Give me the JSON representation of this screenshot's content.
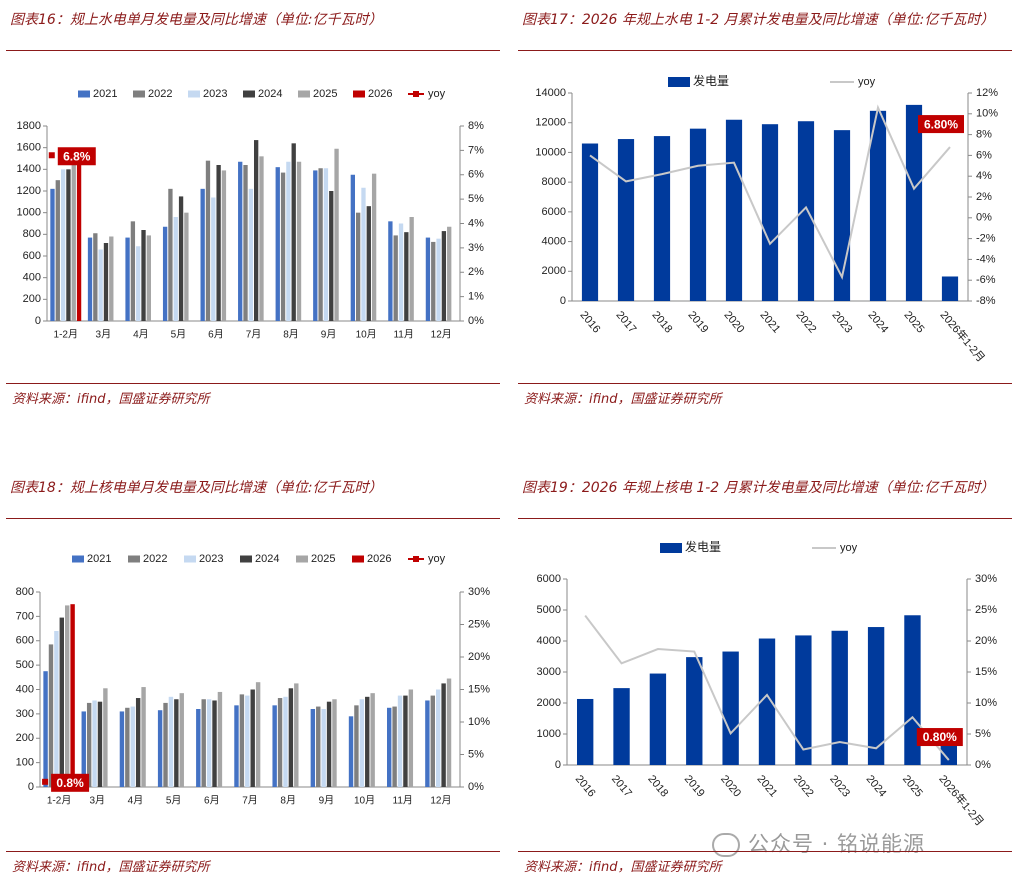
{
  "chart_data": [
    {
      "type": "bar",
      "title": "图表16：规上水电单月发电量及同比增速（单位:亿千瓦时）",
      "source": "资料来源：ifind，国盛证券研究所",
      "categories": [
        "1-2月",
        "3月",
        "4月",
        "5月",
        "6月",
        "7月",
        "8月",
        "9月",
        "10月",
        "11月",
        "12月"
      ],
      "series": [
        {
          "name": "2021",
          "color": "#4472c4",
          "values": [
            1220,
            770,
            770,
            870,
            1220,
            1470,
            1420,
            1390,
            1350,
            920,
            770
          ]
        },
        {
          "name": "2022",
          "color": "#7f7f7f",
          "values": [
            1300,
            810,
            920,
            1220,
            1480,
            1440,
            1370,
            1410,
            1000,
            790,
            730
          ]
        },
        {
          "name": "2023",
          "color": "#c5d9f1",
          "values": [
            1400,
            660,
            690,
            960,
            1140,
            1220,
            1470,
            1410,
            1230,
            900,
            760
          ]
        },
        {
          "name": "2024",
          "color": "#404040",
          "values": [
            1400,
            720,
            840,
            1150,
            1440,
            1670,
            1640,
            1200,
            1060,
            820,
            830
          ]
        },
        {
          "name": "2025",
          "color": "#a6a6a6",
          "values": [
            1460,
            780,
            790,
            1000,
            1390,
            1520,
            1470,
            1590,
            1360,
            960,
            870
          ]
        },
        {
          "name": "2026",
          "color": "#c00000",
          "values": [
            1560,
            null,
            null,
            null,
            null,
            null,
            null,
            null,
            null,
            null,
            null
          ]
        },
        {
          "name": "yoy",
          "color": "#c00000",
          "type": "line",
          "axis": "y2",
          "marker": "square",
          "values": [
            6.8,
            null,
            null,
            null,
            null,
            null,
            null,
            null,
            null,
            null,
            null
          ],
          "value_labels": [
            "6.8%",
            null,
            null,
            null,
            null,
            null,
            null,
            null,
            null,
            null,
            null
          ]
        }
      ],
      "ylim": [
        0,
        1800
      ],
      "yticks": [
        0,
        200,
        400,
        600,
        800,
        1000,
        1200,
        1400,
        1600,
        1800
      ],
      "y2lim": [
        0,
        8
      ],
      "y2ticks": [
        {
          "value": 0,
          "label": "0%"
        },
        {
          "value": 1,
          "label": "1%"
        },
        {
          "value": 2,
          "label": "2%"
        },
        {
          "value": 3,
          "label": "3%"
        },
        {
          "value": 4,
          "label": "4%"
        },
        {
          "value": 5,
          "label": "5%"
        },
        {
          "value": 6,
          "label": "6%"
        },
        {
          "value": 7,
          "label": "7%"
        },
        {
          "value": 8,
          "label": "8%"
        }
      ],
      "legend": "top",
      "grid": false
    },
    {
      "type": "bar",
      "title": "图表17：2026 年规上水电 1-2 月累计发电量及同比增速（单位:亿千瓦时）",
      "source": "资料来源：ifind，国盛证券研究所",
      "categories": [
        "2016",
        "2017",
        "2018",
        "2019",
        "2020",
        "2021",
        "2022",
        "2023",
        "2024",
        "2025",
        "2026年1-2月"
      ],
      "series": [
        {
          "name": "发电量",
          "color": "#003a9c",
          "values": [
            10600,
            10900,
            11100,
            11600,
            12200,
            11900,
            12100,
            11500,
            12800,
            13200,
            1650
          ]
        },
        {
          "name": "yoy",
          "color": "#c8c8c8",
          "type": "line",
          "axis": "y2",
          "values": [
            6.0,
            3.5,
            4.2,
            5.0,
            5.3,
            -2.5,
            1.0,
            -5.7,
            10.6,
            2.8,
            6.8
          ],
          "value_labels": [
            null,
            null,
            null,
            null,
            null,
            null,
            null,
            null,
            null,
            null,
            "6.80%"
          ]
        }
      ],
      "ylim": [
        0,
        14000
      ],
      "yticks": [
        0,
        2000,
        4000,
        6000,
        8000,
        10000,
        12000,
        14000
      ],
      "y2lim": [
        -8,
        12
      ],
      "y2ticks": [
        {
          "value": -8,
          "label": "-8%"
        },
        {
          "value": -6,
          "label": "-6%"
        },
        {
          "value": -4,
          "label": "-4%"
        },
        {
          "value": -2,
          "label": "-2%"
        },
        {
          "value": 0,
          "label": "0%"
        },
        {
          "value": 2,
          "label": "2%"
        },
        {
          "value": 4,
          "label": "4%"
        },
        {
          "value": 6,
          "label": "6%"
        },
        {
          "value": 8,
          "label": "8%"
        },
        {
          "value": 10,
          "label": "10%"
        },
        {
          "value": 12,
          "label": "12%"
        }
      ],
      "legend": "top",
      "grid": false
    },
    {
      "type": "bar",
      "title": "图表18：规上核电单月发电量及同比增速（单位:亿千瓦时）",
      "source": "资料来源：ifind，国盛证券研究所",
      "categories": [
        "1-2月",
        "3月",
        "4月",
        "5月",
        "6月",
        "7月",
        "8月",
        "9月",
        "10月",
        "11月",
        "12月"
      ],
      "series": [
        {
          "name": "2021",
          "color": "#4472c4",
          "values": [
            475,
            310,
            310,
            315,
            320,
            335,
            335,
            320,
            290,
            325,
            355
          ]
        },
        {
          "name": "2022",
          "color": "#7f7f7f",
          "values": [
            585,
            345,
            325,
            345,
            360,
            380,
            365,
            330,
            335,
            330,
            375
          ]
        },
        {
          "name": "2023",
          "color": "#c5d9f1",
          "values": [
            640,
            355,
            330,
            370,
            360,
            375,
            370,
            320,
            360,
            375,
            400
          ]
        },
        {
          "name": "2024",
          "color": "#404040",
          "values": [
            695,
            350,
            365,
            360,
            355,
            400,
            405,
            350,
            370,
            375,
            425
          ]
        },
        {
          "name": "2025",
          "color": "#a6a6a6",
          "values": [
            745,
            405,
            410,
            385,
            390,
            430,
            425,
            360,
            385,
            400,
            445
          ]
        },
        {
          "name": "2026",
          "color": "#c00000",
          "values": [
            750,
            null,
            null,
            null,
            null,
            null,
            null,
            null,
            null,
            null,
            null
          ]
        },
        {
          "name": "yoy",
          "color": "#c00000",
          "type": "line",
          "axis": "y2",
          "marker": "square",
          "values": [
            0.8,
            null,
            null,
            null,
            null,
            null,
            null,
            null,
            null,
            null,
            null
          ],
          "value_labels": [
            "0.8%",
            null,
            null,
            null,
            null,
            null,
            null,
            null,
            null,
            null,
            null
          ]
        }
      ],
      "ylim": [
        0,
        800
      ],
      "yticks": [
        0,
        100,
        200,
        300,
        400,
        500,
        600,
        700,
        800
      ],
      "y2lim": [
        0,
        30
      ],
      "y2ticks": [
        {
          "value": 0,
          "label": "0%"
        },
        {
          "value": 5,
          "label": "5%"
        },
        {
          "value": 10,
          "label": "10%"
        },
        {
          "value": 15,
          "label": "15%"
        },
        {
          "value": 20,
          "label": "20%"
        },
        {
          "value": 25,
          "label": "25%"
        },
        {
          "value": 30,
          "label": "30%"
        }
      ],
      "legend": "top",
      "grid": false
    },
    {
      "type": "bar",
      "title": "图表19：2026 年规上核电 1-2 月累计发电量及同比增速（单位:亿千瓦时）",
      "source": "资料来源：ifind，国盛证券研究所",
      "categories": [
        "2016",
        "2017",
        "2018",
        "2019",
        "2020",
        "2021",
        "2022",
        "2023",
        "2024",
        "2025",
        "2026年1-2月"
      ],
      "series": [
        {
          "name": "发电量",
          "color": "#003a9c",
          "values": [
            2130,
            2480,
            2950,
            3480,
            3660,
            4080,
            4180,
            4330,
            4450,
            4830,
            760
          ]
        },
        {
          "name": "yoy",
          "color": "#c8c8c8",
          "type": "line",
          "axis": "y2",
          "values": [
            24.1,
            16.4,
            18.7,
            18.3,
            5.1,
            11.3,
            2.5,
            3.7,
            2.7,
            7.7,
            0.8
          ],
          "value_labels": [
            null,
            null,
            null,
            null,
            null,
            null,
            null,
            null,
            null,
            null,
            "0.80%"
          ]
        }
      ],
      "ylim": [
        0,
        6000
      ],
      "yticks": [
        0,
        1000,
        2000,
        3000,
        4000,
        5000,
        6000
      ],
      "y2lim": [
        0,
        30
      ],
      "y2ticks": [
        {
          "value": 0,
          "label": "0%"
        },
        {
          "value": 5,
          "label": "5%"
        },
        {
          "value": 10,
          "label": "10%"
        },
        {
          "value": 15,
          "label": "15%"
        },
        {
          "value": 20,
          "label": "20%"
        },
        {
          "value": 25,
          "label": "25%"
        },
        {
          "value": 30,
          "label": "30%"
        }
      ],
      "legend": "top",
      "grid": false
    }
  ],
  "watermark": "公众号 · 铭说能源"
}
